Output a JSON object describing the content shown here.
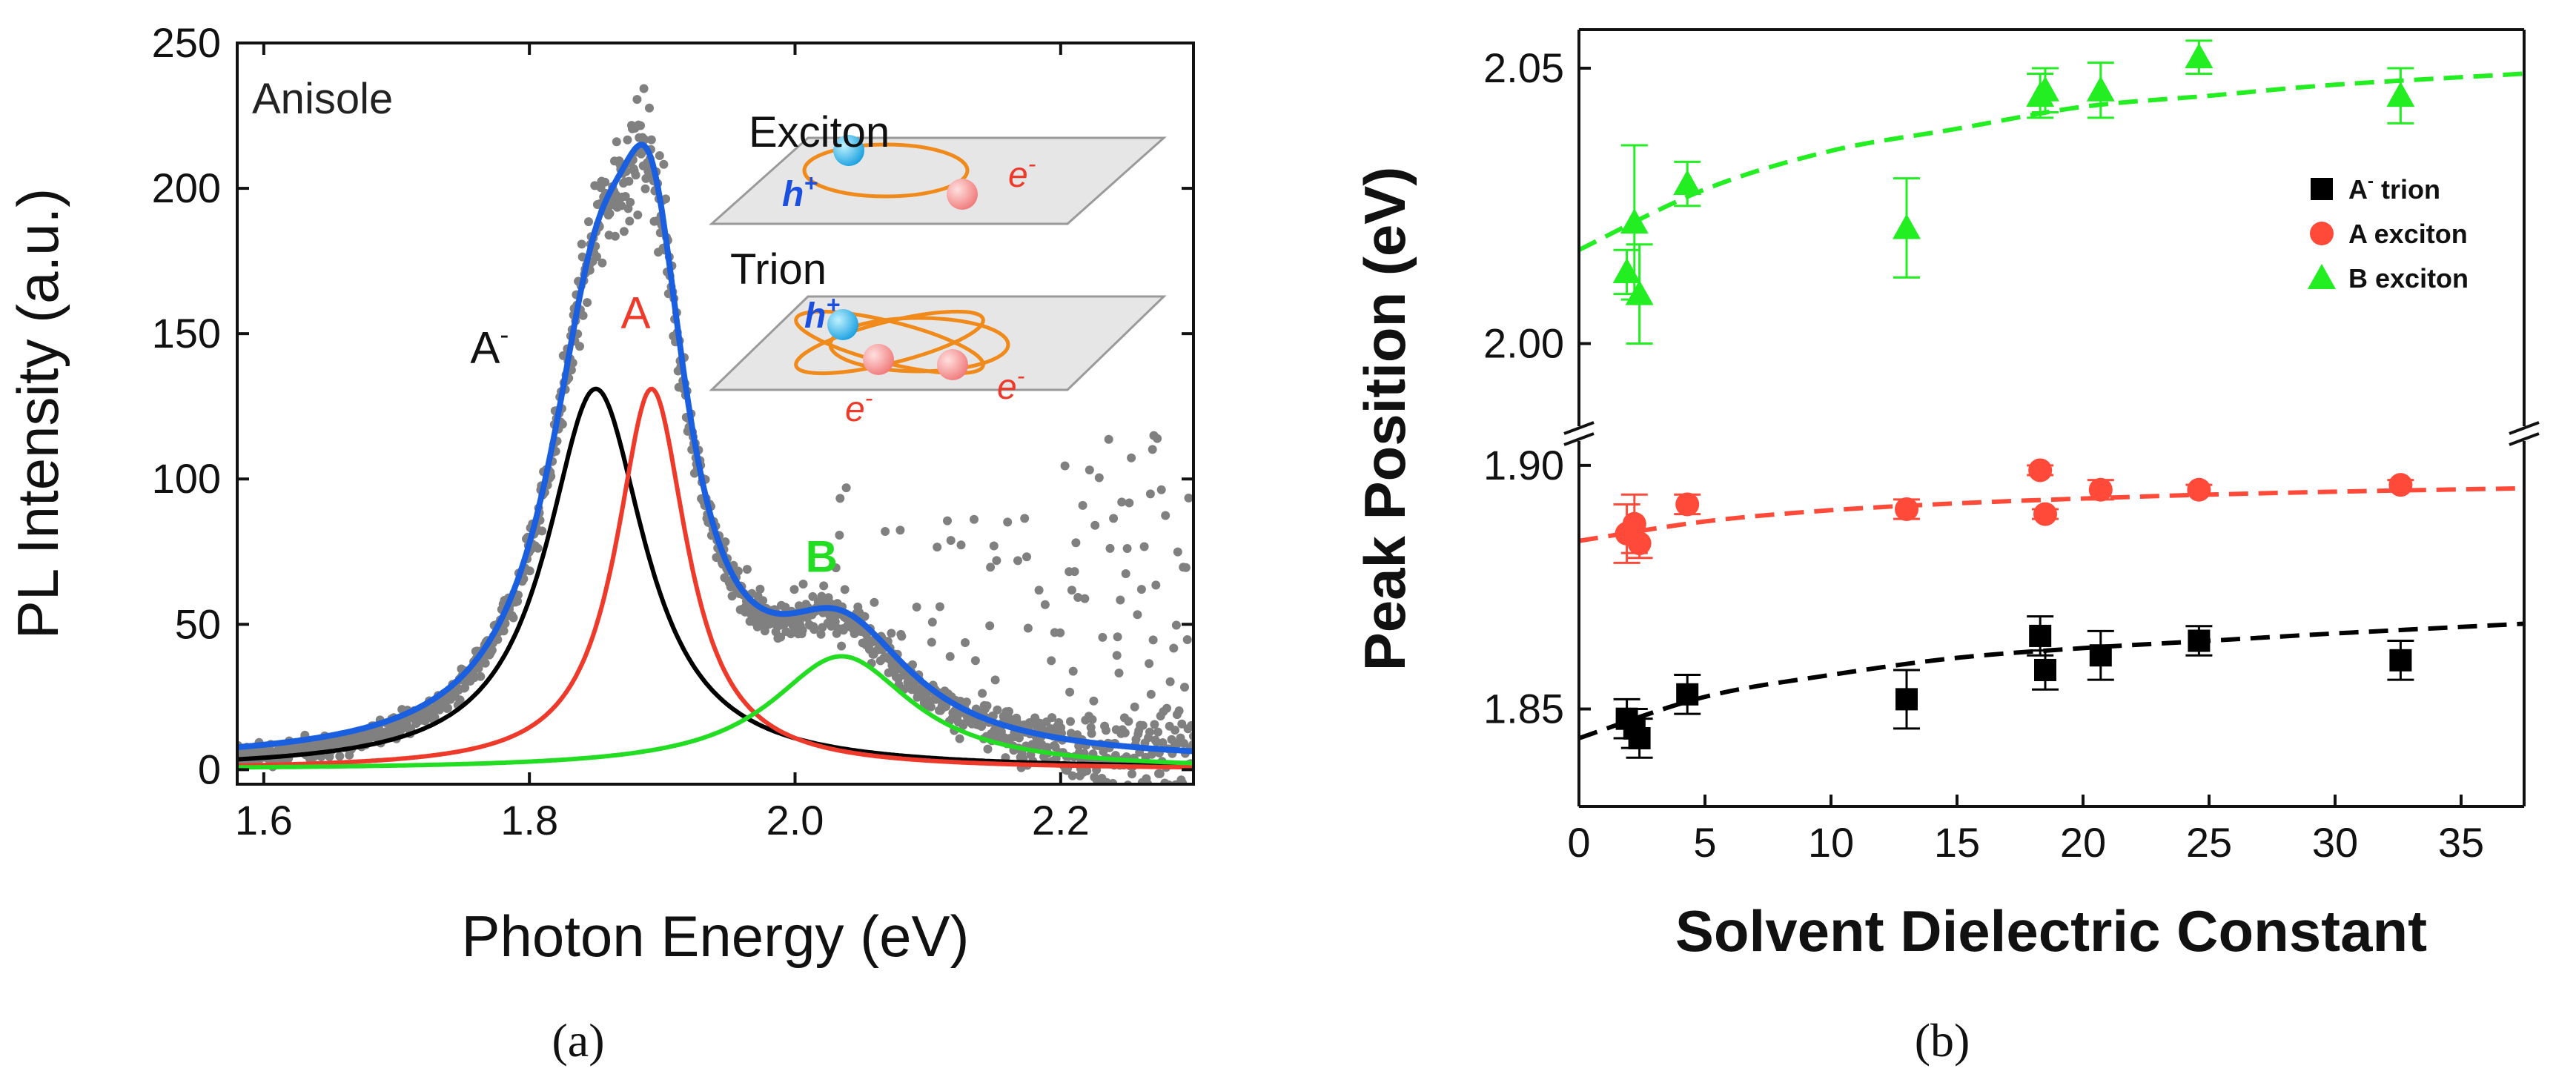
{
  "chart_data": [
    {
      "type": "line",
      "panel_label": "(a)",
      "xlabel": "Photon Energy (eV)",
      "ylabel": "PL Intensity (a.u.)",
      "xlim": [
        1.58,
        2.3
      ],
      "ylim": [
        -5,
        250
      ],
      "xticks": [
        "1.6",
        "1.8",
        "2.0",
        "2.2"
      ],
      "xtick_values": [
        1.6,
        1.8,
        2.0,
        2.2
      ],
      "yticks": [
        "0",
        "50",
        "100",
        "150",
        "200",
        "250"
      ],
      "ytick_values": [
        0,
        50,
        100,
        150,
        200,
        250
      ],
      "solvent_label": "Anisole",
      "peak_labels": [
        {
          "text": "A",
          "sup": "-",
          "color": "#111111",
          "x": 1.77,
          "y": 140
        },
        {
          "text": "A",
          "sup": "",
          "color": "#ee3a2a",
          "x": 1.88,
          "y": 152
        },
        {
          "text": "B",
          "sup": "",
          "color": "#22dd22",
          "x": 2.02,
          "y": 68
        }
      ],
      "series": [
        {
          "name": "A- trion fit",
          "color": "#000000",
          "shape": "lorentzian",
          "center": 1.85,
          "amplitude": 131,
          "fwhm": 0.09
        },
        {
          "name": "A exciton fit",
          "color": "#ee3a2a",
          "shape": "lorentzian",
          "center": 1.892,
          "amplitude": 131,
          "fwhm": 0.065
        },
        {
          "name": "B exciton fit",
          "color": "#22dd22",
          "shape": "lorentzian",
          "center": 2.035,
          "amplitude": 39,
          "fwhm": 0.13
        },
        {
          "name": "Total fit",
          "color": "#1a5fe0",
          "shape": "sum"
        },
        {
          "name": "Experimental data",
          "color": "#808080",
          "shape": "scatter"
        }
      ],
      "inset": {
        "exciton_label": "Exciton",
        "trion_label": "Trion",
        "hole_label": "h",
        "hole_sup": "+",
        "electron_label": "e",
        "electron_sup": "-"
      }
    },
    {
      "type": "scatter",
      "panel_label": "(b)",
      "xlabel": "Solvent Dielectric Constant",
      "ylabel": "Peak Position (eV)",
      "xlim": [
        0,
        37.5
      ],
      "ylim_lower": [
        1.83,
        1.905
      ],
      "ylim_upper": [
        1.985,
        2.057
      ],
      "axis_break": true,
      "xticks": [
        "0",
        "5",
        "10",
        "15",
        "20",
        "25",
        "30",
        "35"
      ],
      "xtick_values": [
        0,
        5,
        10,
        15,
        20,
        25,
        30,
        35
      ],
      "yticks_lower": [
        "1.85",
        "1.90"
      ],
      "ytick_values_lower": [
        1.85,
        1.9
      ],
      "yticks_upper": [
        "2.00",
        "2.05"
      ],
      "ytick_values_upper": [
        2.0,
        2.05
      ],
      "legend": [
        {
          "label": "A",
          "sup": "-",
          "suffix": " trion",
          "color": "#000000",
          "marker": "square"
        },
        {
          "label": "A exciton",
          "sup": "",
          "suffix": "",
          "color": "#ff4a3a",
          "marker": "circle"
        },
        {
          "label": "B exciton",
          "sup": "",
          "suffix": "",
          "color": "#22ee22",
          "marker": "triangle"
        }
      ],
      "series": [
        {
          "name": "A- trion",
          "color": "#000000",
          "marker": "square",
          "x": [
            1.9,
            2.2,
            2.4,
            4.3,
            13.0,
            18.3,
            18.5,
            20.7,
            24.6,
            32.6
          ],
          "y": [
            1.848,
            1.846,
            1.844,
            1.853,
            1.852,
            1.865,
            1.858,
            1.861,
            1.864,
            1.86
          ],
          "err": [
            0.004,
            0.004,
            0.004,
            0.004,
            0.006,
            0.004,
            0.004,
            0.005,
            0.003,
            0.004
          ],
          "fit_x": [
            0.0,
            5,
            10,
            15,
            20,
            25,
            30,
            37.5
          ],
          "fit_y": [
            1.844,
            1.8525,
            1.857,
            1.8605,
            1.8625,
            1.864,
            1.8655,
            1.8675
          ]
        },
        {
          "name": "A exciton",
          "color": "#ff4a3a",
          "marker": "circle",
          "x": [
            1.9,
            2.2,
            2.4,
            4.3,
            13.0,
            18.3,
            18.5,
            20.7,
            24.6,
            32.6
          ],
          "y": [
            1.886,
            1.888,
            1.884,
            1.892,
            1.891,
            1.899,
            1.89,
            1.895,
            1.895,
            1.896
          ],
          "err": [
            0.006,
            0.006,
            0.003,
            0.002,
            0.002,
            0.001,
            0.001,
            0.002,
            0.001,
            0.001
          ],
          "fit_x": [
            0.0,
            5,
            10,
            15,
            20,
            25,
            30,
            37.5
          ],
          "fit_y": [
            1.8845,
            1.8885,
            1.8908,
            1.8922,
            1.8932,
            1.894,
            1.8946,
            1.8953
          ]
        },
        {
          "name": "B exciton",
          "color": "#22ee22",
          "marker": "triangle",
          "x": [
            1.9,
            2.2,
            2.4,
            4.3,
            13.0,
            18.3,
            18.5,
            20.7,
            24.6,
            32.6
          ],
          "y": [
            2.013,
            2.022,
            2.009,
            2.029,
            2.021,
            2.045,
            2.046,
            2.046,
            2.052,
            2.045
          ],
          "err": [
            0.004,
            0.014,
            0.009,
            0.004,
            0.009,
            0.004,
            0.004,
            0.005,
            0.003,
            0.005
          ],
          "fit_x": [
            0.0,
            5,
            10,
            15,
            20,
            25,
            30,
            37.5
          ],
          "fit_y": [
            2.017,
            2.028,
            2.035,
            2.039,
            2.043,
            2.045,
            2.047,
            2.049
          ]
        }
      ]
    }
  ]
}
